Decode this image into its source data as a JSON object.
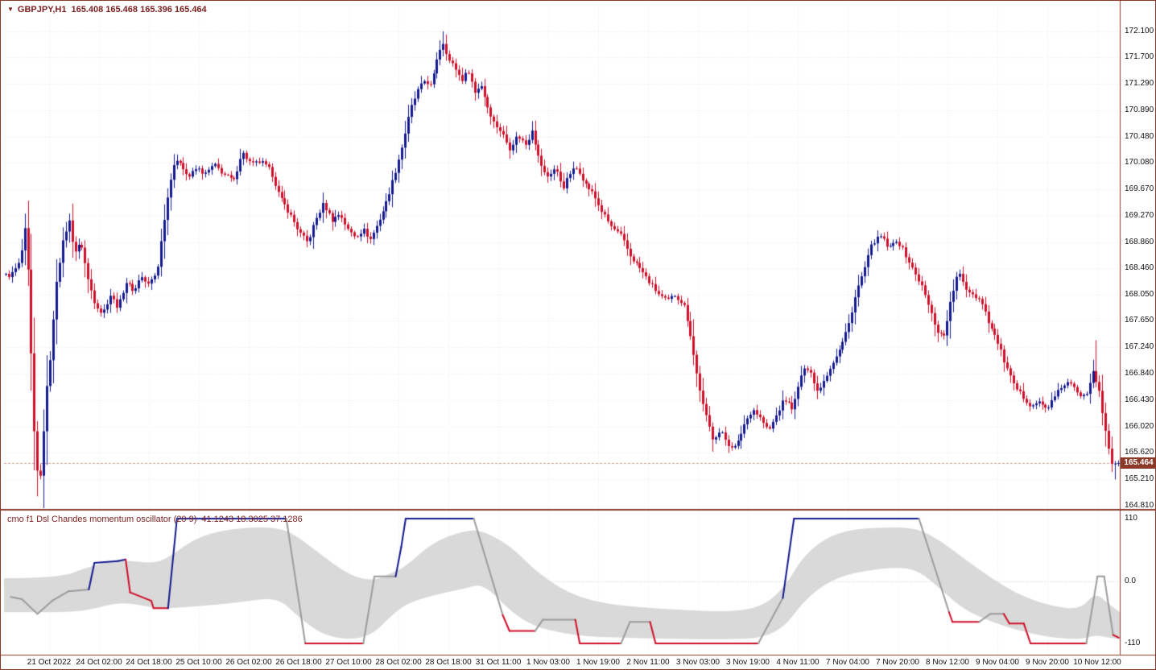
{
  "header": {
    "collapse_icon": "▼",
    "symbol": "GBPJPY,H1",
    "ohlc": "165.408 165.468 165.396 165.464"
  },
  "price_axis": {
    "labels": [
      "172.100",
      "171.700",
      "171.290",
      "170.890",
      "170.480",
      "170.080",
      "169.670",
      "169.270",
      "168.860",
      "168.460",
      "168.050",
      "167.650",
      "167.240",
      "166.840",
      "166.430",
      "166.020",
      "165.620",
      "165.210",
      "164.810"
    ],
    "current": "165.464"
  },
  "time_axis": {
    "labels": [
      "21 Oct 2022",
      "24 Oct 02:00",
      "24 Oct 18:00",
      "25 Oct 10:00",
      "26 Oct 02:00",
      "26 Oct 18:00",
      "27 Oct 10:00",
      "28 Oct 02:00",
      "28 Oct 18:00",
      "31 Oct 11:00",
      "1 Nov 03:00",
      "1 Nov 19:00",
      "2 Nov 11:00",
      "3 Nov 03:00",
      "3 Nov 19:00",
      "4 Nov 11:00",
      "7 Nov 04:00",
      "7 Nov 20:00",
      "8 Nov 12:00",
      "9 Nov 04:00",
      "9 Nov 20:00",
      "10 Nov 12:00"
    ]
  },
  "oscillator": {
    "title": "cmo f1 Dsl Chandes momentum oscillator (20 9)",
    "values": "41.1243 18.3025 37.1286",
    "axis_labels": [
      "110",
      "0.0",
      "-110"
    ]
  },
  "colors": {
    "bull": "#141a8f",
    "bear": "#d00f2a",
    "osc_blue": "#141a8f",
    "osc_red": "#d00f2a",
    "osc_gray": "#9c9c9c",
    "band": "#d9d9d9",
    "grid": "#ededed",
    "border": "#8b3a2a",
    "axis_text": "#111111",
    "header_text": "#7b1f1f",
    "price_tag_bg": "#8b3a2a",
    "price_line": "#cf9a90",
    "background": "#ffffff"
  },
  "chart_data": [
    {
      "type": "candlestick",
      "symbol": "GBPJPY",
      "timeframe": "H1",
      "bars": 352,
      "price_range": [
        164.77,
        172.52
      ],
      "current": {
        "open": 165.408,
        "high": 165.468,
        "low": 165.396,
        "close": 165.464
      },
      "close_waypoints": [
        [
          0.006,
          168.35
        ],
        [
          0.014,
          168.55
        ],
        [
          0.019,
          169.1
        ],
        [
          0.022,
          168.2
        ],
        [
          0.026,
          166.2
        ],
        [
          0.029,
          165.35
        ],
        [
          0.033,
          165.25
        ],
        [
          0.037,
          166.4
        ],
        [
          0.042,
          167.2
        ],
        [
          0.047,
          168.3
        ],
        [
          0.053,
          168.9
        ],
        [
          0.058,
          169.2
        ],
        [
          0.063,
          168.7
        ],
        [
          0.069,
          168.85
        ],
        [
          0.075,
          168.3
        ],
        [
          0.081,
          167.95
        ],
        [
          0.088,
          167.75
        ],
        [
          0.095,
          168.05
        ],
        [
          0.102,
          167.85
        ],
        [
          0.109,
          168.25
        ],
        [
          0.117,
          168.1
        ],
        [
          0.122,
          168.35
        ],
        [
          0.129,
          168.2
        ],
        [
          0.137,
          168.4
        ],
        [
          0.144,
          169.3
        ],
        [
          0.151,
          170.05
        ],
        [
          0.158,
          170.1
        ],
        [
          0.165,
          169.85
        ],
        [
          0.173,
          170.0
        ],
        [
          0.18,
          169.9
        ],
        [
          0.188,
          170.05
        ],
        [
          0.197,
          169.9
        ],
        [
          0.206,
          169.8
        ],
        [
          0.213,
          170.25
        ],
        [
          0.222,
          170.05
        ],
        [
          0.23,
          170.1
        ],
        [
          0.239,
          169.95
        ],
        [
          0.247,
          169.55
        ],
        [
          0.256,
          169.3
        ],
        [
          0.265,
          169.0
        ],
        [
          0.272,
          168.85
        ],
        [
          0.279,
          169.2
        ],
        [
          0.286,
          169.45
        ],
        [
          0.294,
          169.2
        ],
        [
          0.301,
          169.3
        ],
        [
          0.308,
          169.05
        ],
        [
          0.315,
          168.95
        ],
        [
          0.322,
          169.05
        ],
        [
          0.328,
          168.9
        ],
        [
          0.335,
          169.15
        ],
        [
          0.342,
          169.45
        ],
        [
          0.35,
          169.9
        ],
        [
          0.357,
          170.35
        ],
        [
          0.364,
          170.9
        ],
        [
          0.371,
          171.2
        ],
        [
          0.377,
          171.35
        ],
        [
          0.383,
          171.25
        ],
        [
          0.388,
          171.7
        ],
        [
          0.393,
          171.95
        ],
        [
          0.399,
          171.65
        ],
        [
          0.404,
          171.55
        ],
        [
          0.41,
          171.35
        ],
        [
          0.416,
          171.5
        ],
        [
          0.422,
          171.15
        ],
        [
          0.427,
          171.3
        ],
        [
          0.433,
          170.95
        ],
        [
          0.439,
          170.7
        ],
        [
          0.446,
          170.55
        ],
        [
          0.453,
          170.3
        ],
        [
          0.46,
          170.5
        ],
        [
          0.468,
          170.35
        ],
        [
          0.473,
          170.6
        ],
        [
          0.479,
          170.15
        ],
        [
          0.486,
          169.85
        ],
        [
          0.494,
          170.0
        ],
        [
          0.501,
          169.7
        ],
        [
          0.508,
          169.95
        ],
        [
          0.514,
          170.0
        ],
        [
          0.521,
          169.75
        ],
        [
          0.528,
          169.6
        ],
        [
          0.535,
          169.35
        ],
        [
          0.544,
          169.1
        ],
        [
          0.553,
          168.95
        ],
        [
          0.561,
          168.65
        ],
        [
          0.57,
          168.45
        ],
        [
          0.578,
          168.25
        ],
        [
          0.587,
          168.05
        ],
        [
          0.594,
          167.95
        ],
        [
          0.601,
          168.05
        ],
        [
          0.609,
          167.9
        ],
        [
          0.614,
          167.55
        ],
        [
          0.62,
          166.9
        ],
        [
          0.627,
          166.3
        ],
        [
          0.635,
          165.85
        ],
        [
          0.642,
          165.95
        ],
        [
          0.649,
          165.75
        ],
        [
          0.656,
          165.7
        ],
        [
          0.663,
          166.05
        ],
        [
          0.671,
          166.3
        ],
        [
          0.678,
          166.15
        ],
        [
          0.685,
          165.95
        ],
        [
          0.692,
          166.2
        ],
        [
          0.699,
          166.45
        ],
        [
          0.707,
          166.3
        ],
        [
          0.715,
          166.85
        ],
        [
          0.722,
          166.95
        ],
        [
          0.728,
          166.55
        ],
        [
          0.735,
          166.75
        ],
        [
          0.742,
          167.0
        ],
        [
          0.75,
          167.25
        ],
        [
          0.757,
          167.6
        ],
        [
          0.764,
          168.1
        ],
        [
          0.771,
          168.45
        ],
        [
          0.778,
          168.85
        ],
        [
          0.786,
          168.95
        ],
        [
          0.793,
          168.75
        ],
        [
          0.8,
          168.9
        ],
        [
          0.807,
          168.7
        ],
        [
          0.814,
          168.45
        ],
        [
          0.822,
          168.2
        ],
        [
          0.829,
          167.85
        ],
        [
          0.836,
          167.5
        ],
        [
          0.842,
          167.4
        ],
        [
          0.849,
          168.0
        ],
        [
          0.855,
          168.4
        ],
        [
          0.862,
          168.15
        ],
        [
          0.869,
          168.05
        ],
        [
          0.876,
          167.95
        ],
        [
          0.883,
          167.6
        ],
        [
          0.891,
          167.3
        ],
        [
          0.898,
          166.95
        ],
        [
          0.905,
          166.65
        ],
        [
          0.912,
          166.5
        ],
        [
          0.92,
          166.35
        ],
        [
          0.927,
          166.4
        ],
        [
          0.934,
          166.3
        ],
        [
          0.941,
          166.45
        ],
        [
          0.948,
          166.65
        ],
        [
          0.955,
          166.7
        ],
        [
          0.963,
          166.5
        ],
        [
          0.97,
          166.55
        ],
        [
          0.976,
          166.9
        ],
        [
          0.981,
          166.6
        ],
        [
          0.987,
          165.95
        ],
        [
          0.993,
          165.45
        ],
        [
          0.999,
          165.46
        ]
      ],
      "spikes": [
        [
          0.029,
          164.95,
          "low"
        ],
        [
          0.033,
          165.02,
          "low"
        ],
        [
          0.393,
          172.1,
          "high"
        ],
        [
          0.976,
          167.35,
          "high"
        ],
        [
          0.993,
          165.21,
          "low"
        ]
      ]
    },
    {
      "type": "line",
      "name": "cmo_dsl_oscillator",
      "range": [
        -110,
        110
      ],
      "segments": [
        [
          0.006,
          -28,
          0.016,
          -32,
          "g"
        ],
        [
          0.016,
          -32,
          0.03,
          -58,
          "g"
        ],
        [
          0.03,
          -58,
          0.043,
          -35,
          "g"
        ],
        [
          0.043,
          -35,
          0.058,
          -18,
          "g"
        ],
        [
          0.058,
          -18,
          0.076,
          -15,
          "g"
        ],
        [
          0.076,
          -15,
          0.081,
          32,
          "b"
        ],
        [
          0.081,
          32,
          0.102,
          35,
          "b"
        ],
        [
          0.102,
          35,
          0.109,
          38,
          "b"
        ],
        [
          0.109,
          38,
          0.113,
          -20,
          "r"
        ],
        [
          0.113,
          -20,
          0.132,
          -35,
          "r"
        ],
        [
          0.132,
          -35,
          0.134,
          -48,
          "r"
        ],
        [
          0.134,
          -48,
          0.147,
          -48,
          "r"
        ],
        [
          0.147,
          -48,
          0.155,
          110,
          "b"
        ],
        [
          0.155,
          110,
          0.253,
          110,
          "b"
        ],
        [
          0.253,
          110,
          0.27,
          -110,
          "g"
        ],
        [
          0.27,
          -110,
          0.322,
          -110,
          "r"
        ],
        [
          0.322,
          -110,
          0.332,
          8,
          "g"
        ],
        [
          0.332,
          8,
          0.351,
          8,
          "g"
        ],
        [
          0.351,
          8,
          0.356,
          60,
          "b"
        ],
        [
          0.356,
          60,
          0.36,
          110,
          "b"
        ],
        [
          0.36,
          110,
          0.421,
          110,
          "b"
        ],
        [
          0.421,
          110,
          0.447,
          -60,
          "g"
        ],
        [
          0.447,
          -60,
          0.453,
          -88,
          "r"
        ],
        [
          0.453,
          -88,
          0.476,
          -88,
          "r"
        ],
        [
          0.476,
          -88,
          0.483,
          -68,
          "g"
        ],
        [
          0.483,
          -68,
          0.512,
          -68,
          "g"
        ],
        [
          0.512,
          -68,
          0.516,
          -110,
          "r"
        ],
        [
          0.516,
          -110,
          0.553,
          -110,
          "r"
        ],
        [
          0.553,
          -110,
          0.561,
          -72,
          "g"
        ],
        [
          0.561,
          -72,
          0.579,
          -72,
          "g"
        ],
        [
          0.579,
          -72,
          0.584,
          -110,
          "r"
        ],
        [
          0.584,
          -110,
          0.676,
          -110,
          "r"
        ],
        [
          0.676,
          -110,
          0.698,
          -30,
          "g"
        ],
        [
          0.698,
          -30,
          0.708,
          110,
          "b"
        ],
        [
          0.708,
          110,
          0.82,
          110,
          "b"
        ],
        [
          0.82,
          110,
          0.847,
          -55,
          "g"
        ],
        [
          0.847,
          -55,
          0.85,
          -72,
          "r"
        ],
        [
          0.85,
          -72,
          0.874,
          -72,
          "r"
        ],
        [
          0.874,
          -72,
          0.884,
          -58,
          "g"
        ],
        [
          0.884,
          -58,
          0.896,
          -58,
          "g"
        ],
        [
          0.896,
          -58,
          0.901,
          -75,
          "r"
        ],
        [
          0.901,
          -75,
          0.914,
          -75,
          "r"
        ],
        [
          0.914,
          -75,
          0.92,
          -110,
          "r"
        ],
        [
          0.92,
          -110,
          0.97,
          -110,
          "r"
        ],
        [
          0.97,
          -110,
          0.98,
          8,
          "g"
        ],
        [
          0.98,
          8,
          0.986,
          8,
          "g"
        ],
        [
          0.986,
          8,
          0.994,
          -95,
          "g"
        ],
        [
          0.994,
          -95,
          0.999,
          -100,
          "r"
        ]
      ],
      "band": [
        [
          0.0,
          5,
          -55
        ],
        [
          0.05,
          5,
          -55
        ],
        [
          0.075,
          25,
          -52
        ],
        [
          0.105,
          38,
          -36
        ],
        [
          0.135,
          30,
          -48
        ],
        [
          0.15,
          45,
          -48
        ],
        [
          0.175,
          80,
          -44
        ],
        [
          0.21,
          94,
          -38
        ],
        [
          0.245,
          95,
          -28
        ],
        [
          0.262,
          80,
          -60
        ],
        [
          0.285,
          45,
          -95
        ],
        [
          0.31,
          10,
          -104
        ],
        [
          0.33,
          0,
          -95
        ],
        [
          0.345,
          12,
          -65
        ],
        [
          0.36,
          25,
          -40
        ],
        [
          0.385,
          70,
          -25
        ],
        [
          0.415,
          90,
          -12
        ],
        [
          0.43,
          88,
          -5
        ],
        [
          0.455,
          60,
          -55
        ],
        [
          0.475,
          20,
          -80
        ],
        [
          0.5,
          -15,
          -92
        ],
        [
          0.525,
          -35,
          -98
        ],
        [
          0.56,
          -45,
          -100
        ],
        [
          0.6,
          -50,
          -102
        ],
        [
          0.65,
          -55,
          -103
        ],
        [
          0.68,
          -45,
          -100
        ],
        [
          0.7,
          -10,
          -80
        ],
        [
          0.715,
          40,
          -40
        ],
        [
          0.735,
          75,
          -5
        ],
        [
          0.76,
          92,
          15
        ],
        [
          0.8,
          95,
          25
        ],
        [
          0.82,
          92,
          18
        ],
        [
          0.84,
          70,
          -15
        ],
        [
          0.86,
          40,
          -50
        ],
        [
          0.885,
          5,
          -72
        ],
        [
          0.91,
          -25,
          -88
        ],
        [
          0.94,
          -45,
          -100
        ],
        [
          0.965,
          -50,
          -103
        ],
        [
          0.978,
          -20,
          -95
        ],
        [
          0.99,
          -40,
          -100
        ],
        [
          1.0,
          -55,
          -102
        ]
      ]
    }
  ]
}
